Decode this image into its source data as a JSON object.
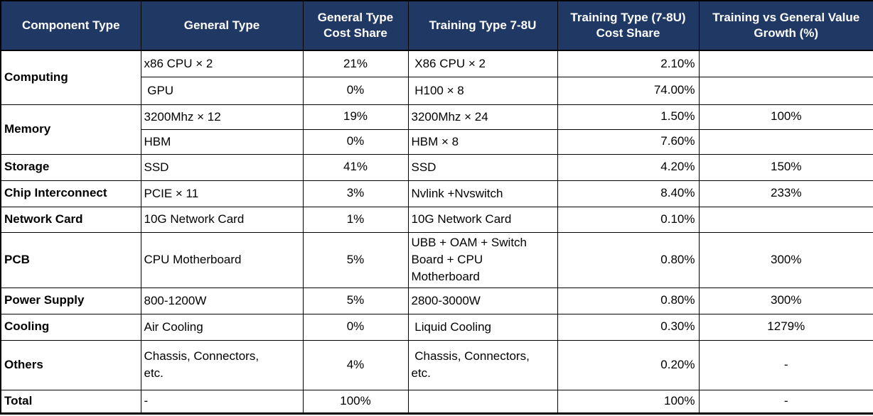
{
  "table": {
    "headers": [
      "Component Type",
      "General Type",
      "General Type\nCost Share",
      "Training Type 7-8U",
      "Training Type (7-8U)\nCost Share",
      "Training vs General Value\nGrowth (%)"
    ],
    "header_bg_color": "#203864",
    "header_text_color": "#ffffff",
    "border_color": "#000000",
    "groups": [
      {
        "component": "Computing",
        "rows": [
          {
            "general": "x86 CPU × 2",
            "general_share": "21%",
            "training": " X86 CPU × 2",
            "training_share": "2.10%",
            "growth": ""
          },
          {
            "general": " GPU",
            "general_share": "0%",
            "training": " H100 × 8",
            "training_share": "74.00%",
            "growth": ""
          }
        ]
      },
      {
        "component": "Memory",
        "rows": [
          {
            "general": "3200Mhz × 12",
            "general_share": "19%",
            "training": "3200Mhz × 24",
            "training_share": "1.50%",
            "growth": "100%"
          },
          {
            "general": "HBM",
            "general_share": "0%",
            "training": "HBM × 8",
            "training_share": "7.60%",
            "growth": ""
          }
        ]
      },
      {
        "component": "Storage",
        "rows": [
          {
            "general": "SSD",
            "general_share": "41%",
            "training": "SSD",
            "training_share": "4.20%",
            "growth": "150%"
          }
        ]
      },
      {
        "component": "Chip Interconnect",
        "rows": [
          {
            "general": "PCIE × 11",
            "general_share": "3%",
            "training": "Nvlink +Nvswitch",
            "training_share": "8.40%",
            "growth": "233%"
          }
        ]
      },
      {
        "component": "Network Card",
        "rows": [
          {
            "general": "10G Network Card",
            "general_share": "1%",
            "training": "10G Network Card",
            "training_share": "0.10%",
            "growth": ""
          }
        ]
      },
      {
        "component": "PCB",
        "rows": [
          {
            "general": "CPU Motherboard",
            "general_share": "5%",
            "training": "UBB + OAM + Switch\nBoard + CPU\nMotherboard",
            "training_share": "0.80%",
            "growth": "300%"
          }
        ]
      },
      {
        "component": "Power Supply",
        "rows": [
          {
            "general": "800-1200W",
            "general_share": "5%",
            "training": "2800-3000W",
            "training_share": "0.80%",
            "growth": "300%"
          }
        ]
      },
      {
        "component": "Cooling",
        "rows": [
          {
            "general": "Air Cooling",
            "general_share": "0%",
            "training": " Liquid Cooling",
            "training_share": "0.30%",
            "growth": "1279%"
          }
        ]
      },
      {
        "component": "Others",
        "rows": [
          {
            "general": "Chassis, Connectors,\netc.",
            "general_share": "4%",
            "training": " Chassis, Connectors,\netc.",
            "training_share": "0.20%",
            "growth": "-"
          }
        ]
      },
      {
        "component": "Total",
        "rows": [
          {
            "general": "-",
            "general_share": "100%",
            "training": "",
            "training_share": "100%",
            "growth": "-"
          }
        ]
      }
    ]
  }
}
